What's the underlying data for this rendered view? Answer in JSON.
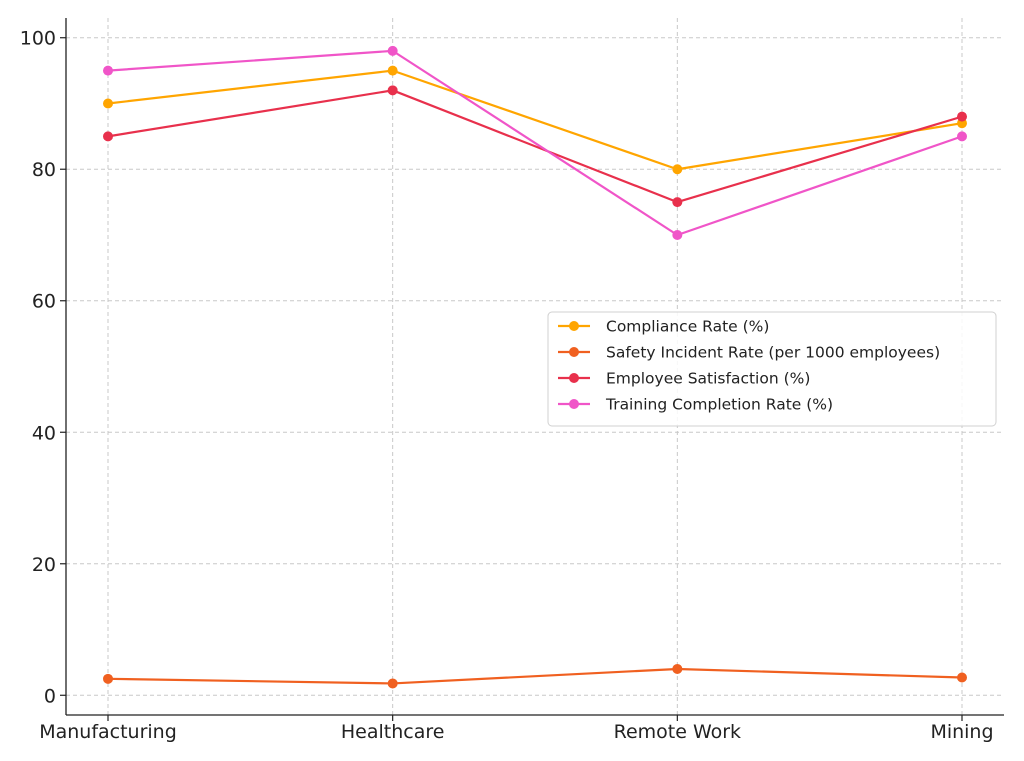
{
  "chart_data": {
    "type": "line",
    "title": "",
    "xlabel": "",
    "ylabel": "",
    "categories": [
      "Manufacturing",
      "Healthcare",
      "Remote Work",
      "Mining"
    ],
    "ylim": [
      -3,
      103
    ],
    "yticks": [
      "0",
      "20",
      "40",
      "60",
      "80",
      "100"
    ],
    "grid": true,
    "legend_position": "center-right",
    "series": [
      {
        "name": "Compliance Rate (%)",
        "color": "#FFA500",
        "values": [
          90,
          95,
          80,
          87
        ]
      },
      {
        "name": "Safety Incident Rate (per 1000 employees)",
        "color": "#F06020",
        "values": [
          2.5,
          1.8,
          4.0,
          2.7
        ]
      },
      {
        "name": "Employee Satisfaction (%)",
        "color": "#E8304C",
        "values": [
          85,
          92,
          75,
          88
        ]
      },
      {
        "name": "Training Completion Rate (%)",
        "color": "#F055C8",
        "values": [
          95,
          98,
          70,
          85
        ]
      }
    ]
  }
}
